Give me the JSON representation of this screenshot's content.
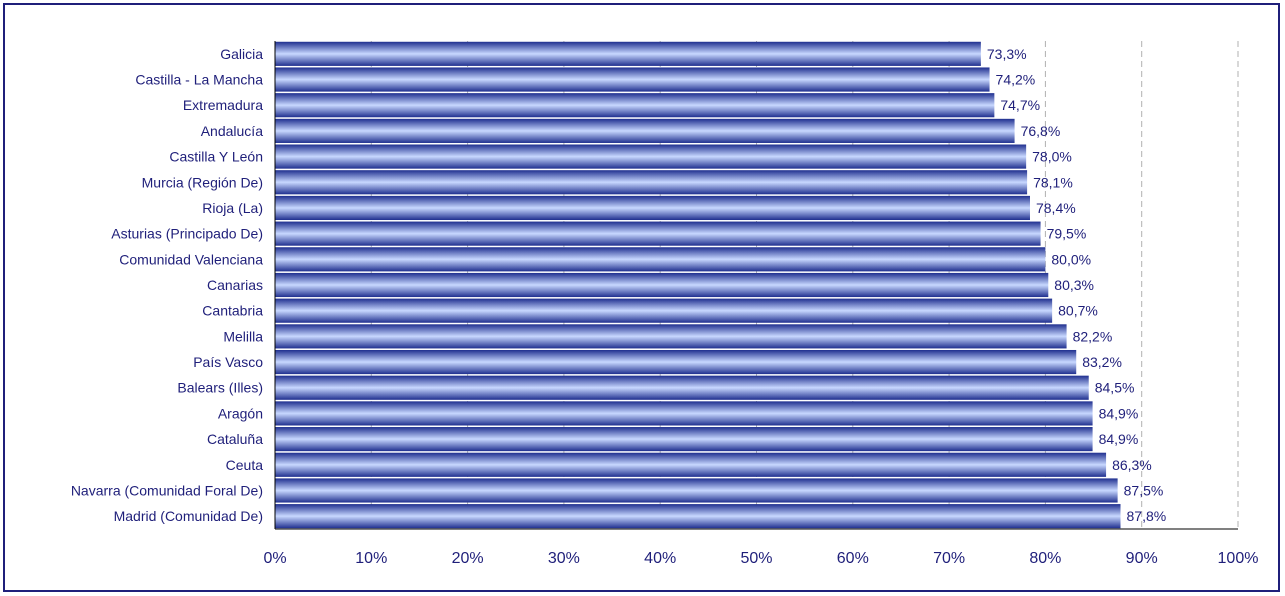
{
  "chart_data": {
    "type": "bar",
    "orientation": "horizontal",
    "title": "",
    "xlabel": "",
    "ylabel": "",
    "categories": [
      "Galicia",
      "Castilla - La Mancha",
      "Extremadura",
      "Andalucía",
      "Castilla Y León",
      "Murcia (Región De)",
      "Rioja (La)",
      "Asturias (Principado De)",
      "Comunidad Valenciana",
      "Canarias",
      "Cantabria",
      "Melilla",
      "País Vasco",
      "Balears (Illes)",
      "Aragón",
      "Cataluña",
      "Ceuta",
      "Navarra (Comunidad Foral De)",
      "Madrid (Comunidad De)"
    ],
    "values": [
      73.3,
      74.2,
      74.7,
      76.8,
      78.0,
      78.1,
      78.4,
      79.5,
      80.0,
      80.3,
      80.7,
      82.2,
      83.2,
      84.5,
      84.9,
      84.9,
      86.3,
      87.5,
      87.8
    ],
    "value_labels": [
      "73,3%",
      "74,2%",
      "74,7%",
      "76,8%",
      "78,0%",
      "78,1%",
      "78,4%",
      "79,5%",
      "80,0%",
      "80,3%",
      "80,7%",
      "82,2%",
      "83,2%",
      "84,5%",
      "84,9%",
      "84,9%",
      "86,3%",
      "87,5%",
      "87,8%"
    ],
    "xlim": [
      0,
      100
    ],
    "x_ticks": [
      0,
      10,
      20,
      30,
      40,
      50,
      60,
      70,
      80,
      90,
      100
    ],
    "x_tick_labels": [
      "0%",
      "10%",
      "20%",
      "30%",
      "40%",
      "50%",
      "60%",
      "70%",
      "80%",
      "90%",
      "100%"
    ],
    "grid": "vertical dashed",
    "legend": "none",
    "colors": {
      "bar_light": "#c8d8ff",
      "bar_mid": "#6f93e8",
      "bar_dark": "#1f2f8f",
      "text": "#1f1f7a",
      "grid": "#b0b0b0"
    }
  }
}
